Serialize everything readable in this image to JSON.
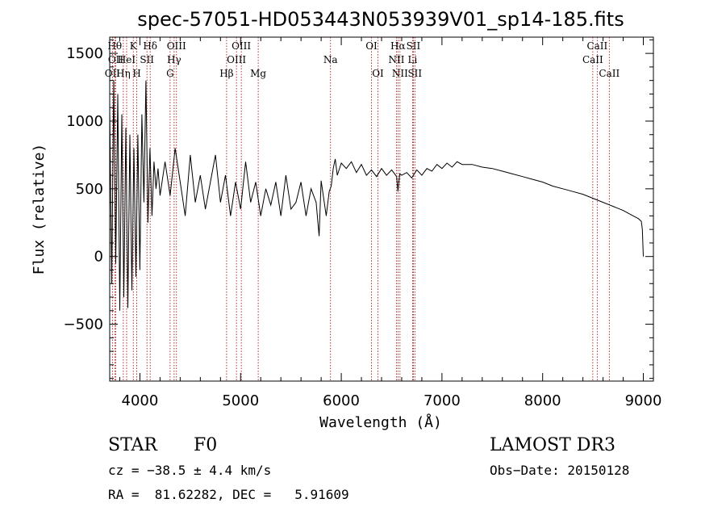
{
  "chart_data": {
    "type": "line",
    "title": "spec-57051-HD053443N053939V01_sp14-185.fits",
    "xlabel": "Wavelength (Å)",
    "ylabel": "Flux (relative)",
    "xlim": [
      3700,
      9100
    ],
    "ylim": [
      -920,
      1620
    ],
    "xticks": [
      4000,
      5000,
      6000,
      7000,
      8000,
      9000
    ],
    "yticks": [
      -500,
      0,
      500,
      1000,
      1500
    ],
    "series": [
      {
        "name": "flux",
        "x": [
          3700,
          3720,
          3740,
          3760,
          3780,
          3800,
          3820,
          3840,
          3860,
          3880,
          3900,
          3920,
          3940,
          3960,
          3980,
          4000,
          4020,
          4040,
          4060,
          4080,
          4100,
          4120,
          4140,
          4160,
          4180,
          4200,
          4250,
          4300,
          4350,
          4400,
          4450,
          4500,
          4550,
          4600,
          4650,
          4700,
          4750,
          4800,
          4850,
          4900,
          4950,
          5000,
          5050,
          5100,
          5150,
          5200,
          5250,
          5300,
          5350,
          5400,
          5450,
          5500,
          5550,
          5600,
          5650,
          5700,
          5750,
          5780,
          5800,
          5850,
          5880,
          5900,
          5920,
          5940,
          5960,
          6000,
          6050,
          6100,
          6150,
          6200,
          6250,
          6300,
          6350,
          6400,
          6450,
          6500,
          6550,
          6563,
          6580,
          6600,
          6650,
          6700,
          6750,
          6800,
          6850,
          6900,
          6950,
          7000,
          7050,
          7100,
          7150,
          7200,
          7300,
          7400,
          7500,
          7600,
          7700,
          7800,
          7900,
          8000,
          8100,
          8200,
          8300,
          8400,
          8500,
          8600,
          8700,
          8800,
          8900,
          8950,
          8980,
          8990,
          9000
        ],
        "y": [
          1100,
          -200,
          1300,
          -50,
          1200,
          -400,
          1050,
          -300,
          950,
          -380,
          900,
          -250,
          800,
          -150,
          900,
          -100,
          1050,
          400,
          1300,
          250,
          800,
          300,
          700,
          500,
          650,
          450,
          700,
          450,
          800,
          550,
          300,
          750,
          400,
          600,
          350,
          550,
          750,
          400,
          600,
          300,
          550,
          350,
          700,
          400,
          550,
          300,
          500,
          380,
          550,
          300,
          600,
          350,
          400,
          550,
          300,
          500,
          400,
          150,
          560,
          300,
          480,
          520,
          650,
          720,
          600,
          690,
          650,
          700,
          620,
          680,
          600,
          640,
          590,
          650,
          600,
          640,
          590,
          480,
          610,
          600,
          620,
          580,
          640,
          600,
          650,
          630,
          680,
          650,
          690,
          660,
          700,
          680,
          680,
          660,
          650,
          630,
          610,
          590,
          570,
          550,
          520,
          500,
          480,
          460,
          430,
          400,
          370,
          340,
          300,
          280,
          260,
          200,
          0
        ]
      }
    ],
    "lines": [
      {
        "wavelength": 3727,
        "label": "OII",
        "row": 2
      },
      {
        "wavelength": 3750,
        "label": "Hθ",
        "row": 0
      },
      {
        "wavelength": 3760,
        "label": "OII",
        "row": 1
      },
      {
        "wavelength": 3835,
        "label": "Hη",
        "row": 2
      },
      {
        "wavelength": 3868,
        "label": "HeI",
        "row": 1
      },
      {
        "wavelength": 3934,
        "label": "K",
        "row": 0
      },
      {
        "wavelength": 3969,
        "label": "H",
        "row": 2
      },
      {
        "wavelength": 4070,
        "label": "SII",
        "row": 1
      },
      {
        "wavelength": 4102,
        "label": "Hδ",
        "row": 0
      },
      {
        "wavelength": 4300,
        "label": "G",
        "row": 2
      },
      {
        "wavelength": 4340,
        "label": "Hγ",
        "row": 1
      },
      {
        "wavelength": 4363,
        "label": "OIII",
        "row": 0
      },
      {
        "wavelength": 4861,
        "label": "Hβ",
        "row": 2
      },
      {
        "wavelength": 4959,
        "label": "OIII",
        "row": 1
      },
      {
        "wavelength": 5007,
        "label": "OIII",
        "row": 0
      },
      {
        "wavelength": 5175,
        "label": "Mg",
        "row": 2
      },
      {
        "wavelength": 5893,
        "label": "Na",
        "row": 1
      },
      {
        "wavelength": 6300,
        "label": "OI",
        "row": 0
      },
      {
        "wavelength": 6364,
        "label": "OI",
        "row": 2
      },
      {
        "wavelength": 6548,
        "label": "NII",
        "row": 1
      },
      {
        "wavelength": 6563,
        "label": "Hα",
        "row": 0
      },
      {
        "wavelength": 6583,
        "label": "NII",
        "row": 2
      },
      {
        "wavelength": 6708,
        "label": "Li",
        "row": 1
      },
      {
        "wavelength": 6716,
        "label": "SII",
        "row": 0
      },
      {
        "wavelength": 6731,
        "label": "SII",
        "row": 2
      },
      {
        "wavelength": 8498,
        "label": "CaII",
        "row": 1
      },
      {
        "wavelength": 8542,
        "label": "CaII",
        "row": 0
      },
      {
        "wavelength": 8662,
        "label": "CaII",
        "row": 2
      }
    ]
  },
  "info": {
    "class": "STAR",
    "subclass": "F0",
    "survey": "LAMOST DR3",
    "cz": "cz = −38.5 ± 4.4 km/s",
    "obsdate": "Obs−Date: 20150128",
    "radec": "RA =  81.62282, DEC =   5.91609"
  },
  "colors": {
    "line_marker": "#a00000",
    "axis": "#000000"
  }
}
